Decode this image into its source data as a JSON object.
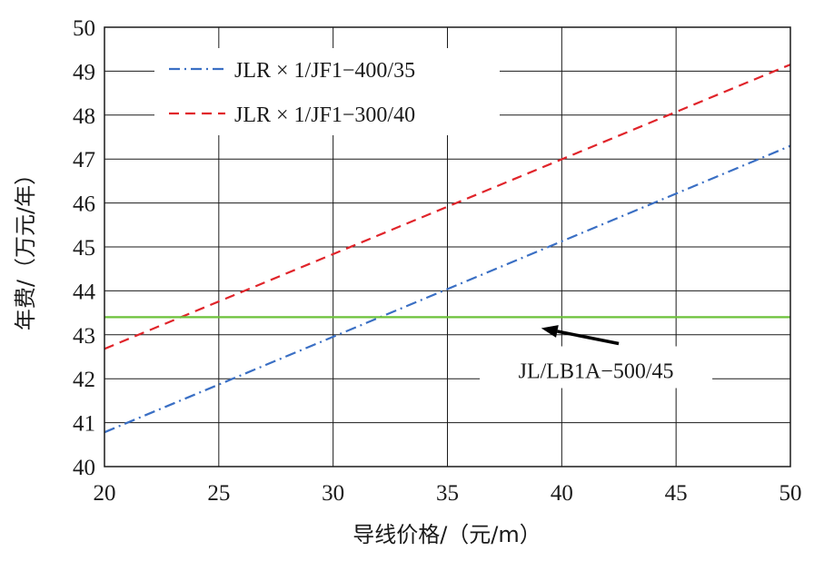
{
  "chart_data": {
    "type": "line",
    "xlabel": "导线价格/（元/m）",
    "ylabel": "年费/（万元/年）",
    "xlim": [
      20,
      50
    ],
    "ylim": [
      40,
      50
    ],
    "xticks": [
      20,
      25,
      30,
      35,
      40,
      45,
      50
    ],
    "yticks": [
      40,
      41,
      42,
      43,
      44,
      45,
      46,
      47,
      48,
      49,
      50
    ],
    "grid": true,
    "legend": "top-left",
    "series": [
      {
        "name": "JLR × 1/JF1−400/35",
        "color": "#3a6fc4",
        "dash": "dashdot",
        "x": [
          20,
          50
        ],
        "y": [
          40.78,
          47.3
        ]
      },
      {
        "name": "JLR × 1/JF1−300/40",
        "color": "#e0242a",
        "dash": "dash",
        "x": [
          20,
          50
        ],
        "y": [
          42.68,
          49.15
        ]
      },
      {
        "name": "JL/LB1A−500/45",
        "color": "#6cc23a",
        "dash": "solid",
        "x": [
          20,
          50
        ],
        "y": [
          43.4,
          43.4
        ]
      }
    ],
    "annotations": [
      {
        "text": "JL/LB1A−500/45",
        "arrow_to": [
          39.5,
          43.4
        ],
        "text_at": [
          41.5,
          42.2
        ]
      }
    ]
  }
}
